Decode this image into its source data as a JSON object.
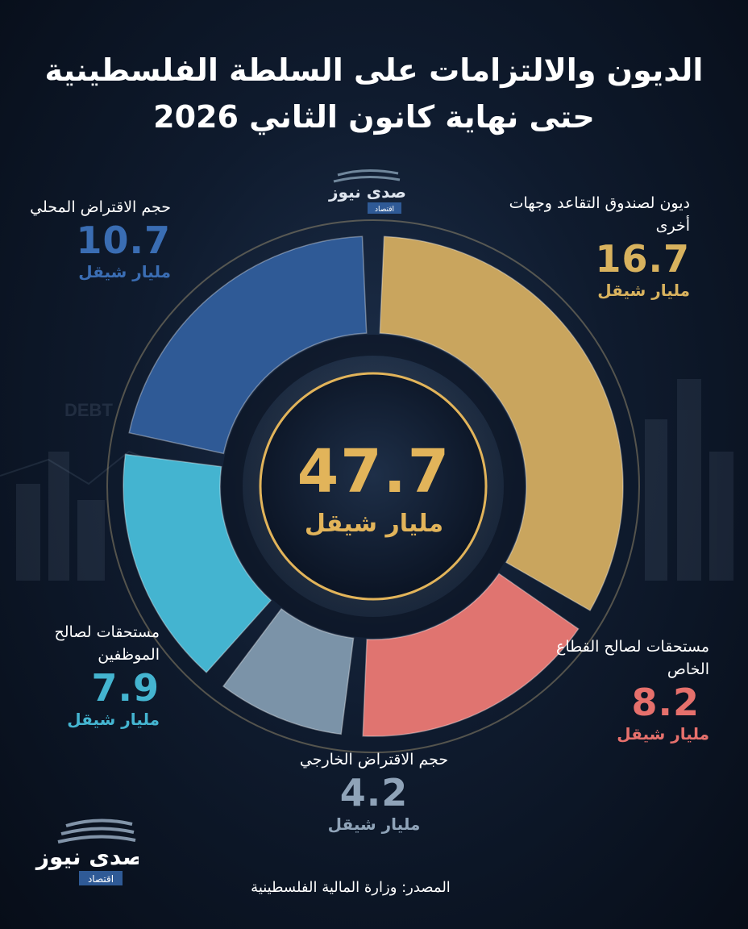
{
  "title_line1": "الديون والالتزامات على السلطة الفلسطينية",
  "title_line2": "حتى نهاية كانون الثاني 2026",
  "brand": {
    "name": "صدى نيوز",
    "tag": "اقتصاد"
  },
  "background_text": "DEBT",
  "center": {
    "value": "47.7",
    "unit": "مليار شيقل"
  },
  "source": "المصدر: وزارة المالية الفلسطينية",
  "colors": {
    "pension": "#c9a55e",
    "private_sector": "#e07470",
    "external": "#7b93a8",
    "employees": "#44b4d0",
    "domestic": "#2f5a96",
    "accent": "#e2b45a"
  },
  "chart_data": {
    "type": "pie",
    "variant": "donut",
    "total": 47.7,
    "unit": "مليار شيقل",
    "slices": [
      {
        "label": "ديون لصندوق التقاعد وجهات أخرى",
        "value": 16.7,
        "value_text": "16.7",
        "color": "#c9a55e"
      },
      {
        "label": "مستحقات لصالح القطاع الخاص",
        "value": 8.2,
        "value_text": "8.2",
        "color": "#e07470"
      },
      {
        "label": "حجم الاقتراض الخارجي",
        "value": 4.2,
        "value_text": "4.2",
        "color": "#7b93a8"
      },
      {
        "label": "مستحقات لصالح الموظفين",
        "value": 7.9,
        "value_text": "7.9",
        "color": "#44b4d0"
      },
      {
        "label": "حجم الاقتراض المحلي",
        "value": 10.7,
        "value_text": "10.7",
        "color": "#2f5a96"
      }
    ]
  }
}
